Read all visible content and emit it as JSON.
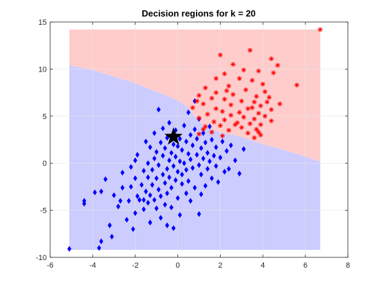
{
  "chart_data": {
    "type": "scatter",
    "title": "Decision regions for k = 20",
    "xlabel": "",
    "ylabel": "",
    "xlim": [
      -6,
      8
    ],
    "ylim": [
      -10,
      15
    ],
    "xticks": [
      "-6",
      "-4",
      "-2",
      "0",
      "2",
      "4",
      "6",
      "8"
    ],
    "yticks": [
      "-10",
      "-5",
      "0",
      "5",
      "10",
      "15"
    ],
    "grid": true,
    "colors": {
      "class_blue": "#0000ff",
      "class_red": "#ff0000",
      "region_blue": "#ccccff",
      "region_red": "#ffcccc",
      "query": "#000000",
      "axes": "#262626",
      "grid": "#e6e6e6"
    },
    "regions": {
      "x_range": [
        -5.1,
        6.7
      ],
      "y_range": [
        -9.2,
        14.2
      ],
      "boundary": [
        {
          "x": -5.1,
          "y": 10.4
        },
        {
          "x": -4.0,
          "y": 9.9
        },
        {
          "x": -3.0,
          "y": 9.2
        },
        {
          "x": -2.0,
          "y": 8.5
        },
        {
          "x": -1.0,
          "y": 7.6
        },
        {
          "x": 0.0,
          "y": 6.7
        },
        {
          "x": 0.5,
          "y": 5.9
        },
        {
          "x": 1.0,
          "y": 4.4
        },
        {
          "x": 1.5,
          "y": 3.7
        },
        {
          "x": 2.0,
          "y": 3.3
        },
        {
          "x": 3.0,
          "y": 2.8
        },
        {
          "x": 4.0,
          "y": 2.0
        },
        {
          "x": 5.0,
          "y": 1.4
        },
        {
          "x": 6.0,
          "y": 0.7
        },
        {
          "x": 6.7,
          "y": 0.2
        }
      ],
      "lower_class": "blue",
      "upper_class": "red"
    },
    "query_point": {
      "x": -0.2,
      "y": 2.8,
      "marker": "pentagram"
    },
    "series": [
      {
        "class": "blue",
        "marker": "diamond",
        "points": [
          {
            "x": -5.1,
            "y": -9.1
          },
          {
            "x": -4.4,
            "y": -4.0
          },
          {
            "x": -4.4,
            "y": -4.3
          },
          {
            "x": -3.9,
            "y": -3.1
          },
          {
            "x": -3.7,
            "y": -9.0
          },
          {
            "x": -3.6,
            "y": -8.3
          },
          {
            "x": -3.6,
            "y": -3.0
          },
          {
            "x": -3.4,
            "y": -1.7
          },
          {
            "x": -3.2,
            "y": -6.6
          },
          {
            "x": -3.1,
            "y": -7.8
          },
          {
            "x": -3.0,
            "y": -3.4
          },
          {
            "x": -2.8,
            "y": -4.6
          },
          {
            "x": -2.7,
            "y": -4.0
          },
          {
            "x": -2.6,
            "y": -1.0
          },
          {
            "x": -2.4,
            "y": -6.0
          },
          {
            "x": -2.3,
            "y": -4.0
          },
          {
            "x": -2.2,
            "y": -2.5
          },
          {
            "x": -2.2,
            "y": -0.4
          },
          {
            "x": -2.1,
            "y": -7.0
          },
          {
            "x": -2.0,
            "y": -5.3
          },
          {
            "x": -2.0,
            "y": -1.6
          },
          {
            "x": -2.0,
            "y": 0.3
          },
          {
            "x": -1.9,
            "y": -3.5
          },
          {
            "x": -1.9,
            "y": 0.9
          },
          {
            "x": -1.8,
            "y": -3.9
          },
          {
            "x": -1.7,
            "y": -2.3
          },
          {
            "x": -1.6,
            "y": -4.9
          },
          {
            "x": -1.6,
            "y": -0.8
          },
          {
            "x": -1.5,
            "y": -3.0
          },
          {
            "x": -1.5,
            "y": 2.3
          },
          {
            "x": -1.4,
            "y": -4.2
          },
          {
            "x": -1.4,
            "y": -1.5
          },
          {
            "x": -1.4,
            "y": 0.0
          },
          {
            "x": -1.3,
            "y": -6.3
          },
          {
            "x": -1.3,
            "y": -3.4
          },
          {
            "x": -1.3,
            "y": 1.7
          },
          {
            "x": -1.2,
            "y": -2.3
          },
          {
            "x": -1.2,
            "y": -0.7
          },
          {
            "x": -1.1,
            "y": -3.9
          },
          {
            "x": -1.1,
            "y": 0.5
          },
          {
            "x": -1.1,
            "y": 3.2
          },
          {
            "x": -1.0,
            "y": -1.6
          },
          {
            "x": -1.0,
            "y": -4.8
          },
          {
            "x": -1.0,
            "y": 1.2
          },
          {
            "x": -0.9,
            "y": 5.7
          },
          {
            "x": -0.9,
            "y": -2.8
          },
          {
            "x": -0.9,
            "y": -0.2
          },
          {
            "x": -0.8,
            "y": 2.2
          },
          {
            "x": -0.8,
            "y": -5.8
          },
          {
            "x": -0.8,
            "y": -3.5
          },
          {
            "x": -0.7,
            "y": -1.2
          },
          {
            "x": -0.7,
            "y": 0.8
          },
          {
            "x": -0.7,
            "y": 3.7
          },
          {
            "x": -0.6,
            "y": -2.1
          },
          {
            "x": -0.6,
            "y": -4.4
          },
          {
            "x": -0.6,
            "y": 1.6
          },
          {
            "x": -0.5,
            "y": -0.6
          },
          {
            "x": -0.5,
            "y": -6.6
          },
          {
            "x": -0.5,
            "y": -3.2
          },
          {
            "x": -0.5,
            "y": 2.7
          },
          {
            "x": -0.4,
            "y": 0.3
          },
          {
            "x": -0.4,
            "y": -1.5
          },
          {
            "x": -0.4,
            "y": 4.3
          },
          {
            "x": -0.3,
            "y": -2.6
          },
          {
            "x": -0.3,
            "y": 1.1
          },
          {
            "x": -0.3,
            "y": -4.7
          },
          {
            "x": -0.2,
            "y": -0.3
          },
          {
            "x": -0.2,
            "y": 2.0
          },
          {
            "x": -0.2,
            "y": -6.9
          },
          {
            "x": -0.1,
            "y": -1.8
          },
          {
            "x": -0.1,
            "y": 0.7
          },
          {
            "x": -0.1,
            "y": 3.5
          },
          {
            "x": 0.0,
            "y": -3.7
          },
          {
            "x": 0.0,
            "y": -0.9
          },
          {
            "x": 0.0,
            "y": 1.8
          },
          {
            "x": 0.1,
            "y": -5.5
          },
          {
            "x": 0.1,
            "y": 0.2
          },
          {
            "x": 0.1,
            "y": 2.6
          },
          {
            "x": 0.2,
            "y": -2.2
          },
          {
            "x": 0.2,
            "y": 1.4
          },
          {
            "x": 0.2,
            "y": -1.2
          },
          {
            "x": 0.3,
            "y": 4.0
          },
          {
            "x": 0.3,
            "y": 0.0
          },
          {
            "x": 0.4,
            "y": -3.2
          },
          {
            "x": 0.4,
            "y": 2.3
          },
          {
            "x": 0.4,
            "y": -0.7
          },
          {
            "x": 0.5,
            "y": 1.0
          },
          {
            "x": 0.5,
            "y": 5.4
          },
          {
            "x": 0.5,
            "y": -1.9
          },
          {
            "x": 0.6,
            "y": 3.0
          },
          {
            "x": 0.6,
            "y": -4.0
          },
          {
            "x": 0.6,
            "y": 0.4
          },
          {
            "x": 0.7,
            "y": 1.9
          },
          {
            "x": 0.7,
            "y": -0.5
          },
          {
            "x": 0.8,
            "y": 3.6
          },
          {
            "x": 0.8,
            "y": -2.6
          },
          {
            "x": 0.8,
            "y": 6.6
          },
          {
            "x": 0.9,
            "y": 0.9
          },
          {
            "x": 0.9,
            "y": 2.6
          },
          {
            "x": 1.0,
            "y": -0.2
          },
          {
            "x": 1.0,
            "y": 4.7
          },
          {
            "x": 1.0,
            "y": -5.4
          },
          {
            "x": 1.1,
            "y": 1.6
          },
          {
            "x": 1.1,
            "y": -1.2
          },
          {
            "x": 1.2,
            "y": 3.2
          },
          {
            "x": 1.2,
            "y": 0.5
          },
          {
            "x": 1.3,
            "y": -2.4
          },
          {
            "x": 1.3,
            "y": 2.2
          },
          {
            "x": 1.4,
            "y": -0.6
          },
          {
            "x": 1.4,
            "y": 1.1
          },
          {
            "x": 1.5,
            "y": 3.9
          },
          {
            "x": 1.5,
            "y": 0.2
          },
          {
            "x": 1.6,
            "y": -1.6
          },
          {
            "x": 1.6,
            "y": 2.5
          },
          {
            "x": 1.7,
            "y": 0.8
          },
          {
            "x": 1.8,
            "y": -0.3
          },
          {
            "x": 1.8,
            "y": 1.7
          },
          {
            "x": 1.9,
            "y": -2.0
          },
          {
            "x": 2.0,
            "y": 0.6
          },
          {
            "x": 2.1,
            "y": 2.3
          },
          {
            "x": 2.2,
            "y": -0.9
          },
          {
            "x": 2.3,
            "y": 1.3
          },
          {
            "x": 2.4,
            "y": -0.6
          },
          {
            "x": 2.5,
            "y": 1.9
          },
          {
            "x": 2.7,
            "y": 0.3
          },
          {
            "x": 2.9,
            "y": -1.1
          },
          {
            "x": 3.1,
            "y": 1.5
          },
          {
            "x": 1.1,
            "y": -3.3
          },
          {
            "x": -1.6,
            "y": -3.9
          },
          {
            "x": -2.6,
            "y": -2.6
          }
        ]
      },
      {
        "class": "red",
        "marker": "asterisk",
        "points": [
          {
            "x": 6.7,
            "y": 14.2
          },
          {
            "x": 3.4,
            "y": 12.0
          },
          {
            "x": 4.4,
            "y": 11.1
          },
          {
            "x": 4.7,
            "y": 10.4
          },
          {
            "x": 2.0,
            "y": 11.5
          },
          {
            "x": 2.6,
            "y": 10.5
          },
          {
            "x": 3.1,
            "y": 9.9
          },
          {
            "x": 3.8,
            "y": 9.8
          },
          {
            "x": 4.5,
            "y": 9.6
          },
          {
            "x": 2.2,
            "y": 9.5
          },
          {
            "x": 1.8,
            "y": 9.0
          },
          {
            "x": 2.9,
            "y": 9.0
          },
          {
            "x": 3.5,
            "y": 8.8
          },
          {
            "x": 4.0,
            "y": 8.4
          },
          {
            "x": 5.6,
            "y": 8.3
          },
          {
            "x": 2.4,
            "y": 8.2
          },
          {
            "x": 1.3,
            "y": 8.0
          },
          {
            "x": 3.2,
            "y": 7.8
          },
          {
            "x": 4.1,
            "y": 7.6
          },
          {
            "x": 1.8,
            "y": 7.5
          },
          {
            "x": 2.6,
            "y": 7.3
          },
          {
            "x": 1.0,
            "y": 7.2
          },
          {
            "x": 3.7,
            "y": 7.1
          },
          {
            "x": 4.3,
            "y": 7.0
          },
          {
            "x": 1.6,
            "y": 6.9
          },
          {
            "x": 2.2,
            "y": 6.8
          },
          {
            "x": 0.9,
            "y": 6.6
          },
          {
            "x": 3.0,
            "y": 6.6
          },
          {
            "x": 3.6,
            "y": 6.5
          },
          {
            "x": 4.8,
            "y": 6.3
          },
          {
            "x": 1.2,
            "y": 6.3
          },
          {
            "x": 2.5,
            "y": 6.2
          },
          {
            "x": 3.9,
            "y": 6.1
          },
          {
            "x": 0.7,
            "y": 5.9
          },
          {
            "x": 1.8,
            "y": 5.8
          },
          {
            "x": 3.3,
            "y": 5.8
          },
          {
            "x": 4.4,
            "y": 5.7
          },
          {
            "x": 2.1,
            "y": 5.5
          },
          {
            "x": 2.9,
            "y": 5.4
          },
          {
            "x": 3.8,
            "y": 5.3
          },
          {
            "x": 1.4,
            "y": 5.2
          },
          {
            "x": 2.5,
            "y": 5.1
          },
          {
            "x": 4.1,
            "y": 5.0
          },
          {
            "x": 3.1,
            "y": 4.9
          },
          {
            "x": 1.0,
            "y": 4.8
          },
          {
            "x": 3.6,
            "y": 4.7
          },
          {
            "x": 2.2,
            "y": 4.6
          },
          {
            "x": 4.4,
            "y": 4.5
          },
          {
            "x": 1.7,
            "y": 4.4
          },
          {
            "x": 2.8,
            "y": 4.3
          },
          {
            "x": 3.4,
            "y": 4.2
          },
          {
            "x": 3.9,
            "y": 4.1
          },
          {
            "x": 2.0,
            "y": 4.0
          },
          {
            "x": 1.3,
            "y": 3.9
          },
          {
            "x": 3.0,
            "y": 3.8
          },
          {
            "x": 3.7,
            "y": 3.6
          },
          {
            "x": 2.4,
            "y": 3.5
          },
          {
            "x": 1.6,
            "y": 3.3
          },
          {
            "x": 3.3,
            "y": 3.2
          },
          {
            "x": 1.0,
            "y": 3.1
          },
          {
            "x": 3.9,
            "y": 3.0
          },
          {
            "x": 2.1,
            "y": 2.9
          },
          {
            "x": 3.6,
            "y": 2.7
          },
          {
            "x": 2.7,
            "y": 4.1
          },
          {
            "x": 3.5,
            "y": 5.9
          },
          {
            "x": 1.2,
            "y": 3.6
          },
          {
            "x": 2.3,
            "y": 7.7
          },
          {
            "x": 3.8,
            "y": 3.3
          },
          {
            "x": 4.2,
            "y": 6.5
          }
        ]
      }
    ]
  }
}
